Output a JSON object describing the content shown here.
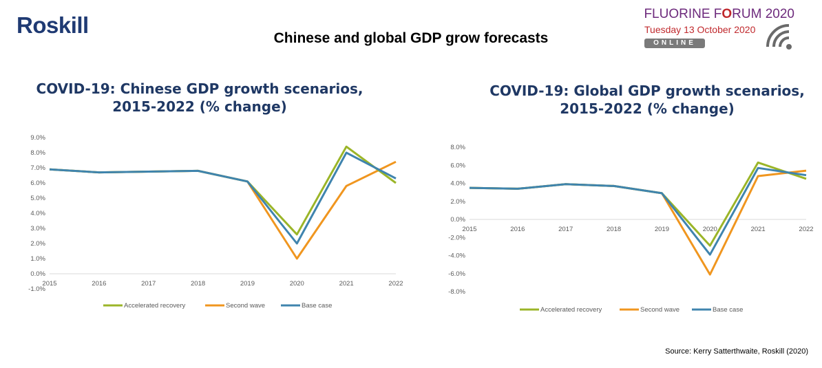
{
  "header": {
    "logo": "Roskill",
    "title": "Chinese and global GDP grow forecasts",
    "event_name_a": "FLUORINE F",
    "event_name_b": "O",
    "event_name_c": "RUM 2020",
    "event_date": "Tuesday 13 October 2020",
    "event_badge": "ONLINE",
    "event_icon": "wifi-signal-icon"
  },
  "source": "Source: Kerry Satterthwaite, Roskill (2020)",
  "colors": {
    "accelerated": "#9bb528",
    "second": "#f0961f",
    "base": "#3f84ae",
    "grid": "#d9d9d9"
  },
  "chart_data": [
    {
      "type": "line",
      "title_line1": "COVID-19: Chinese GDP growth scenarios,",
      "title_line2": "2015-2022 (% change)",
      "categories": [
        "2015",
        "2016",
        "2017",
        "2018",
        "2019",
        "2020",
        "2021",
        "2022"
      ],
      "yticks": [
        "-1.0%",
        "0.0%",
        "1.0%",
        "2.0%",
        "3.0%",
        "4.0%",
        "5.0%",
        "6.0%",
        "7.0%",
        "8.0%",
        "9.0%"
      ],
      "ylim": [
        -1,
        9
      ],
      "grid": "none",
      "legend_position": "bottom",
      "series": [
        {
          "name": "Accelerated recovery",
          "key": "accelerated",
          "values": [
            6.9,
            6.7,
            6.75,
            6.8,
            6.1,
            2.6,
            8.4,
            6.0
          ]
        },
        {
          "name": "Second wave",
          "key": "second",
          "values": [
            6.9,
            6.7,
            6.75,
            6.8,
            6.1,
            1.0,
            5.8,
            7.4
          ]
        },
        {
          "name": "Base case",
          "key": "base",
          "values": [
            6.9,
            6.7,
            6.75,
            6.8,
            6.1,
            2.0,
            8.0,
            6.3
          ]
        }
      ]
    },
    {
      "type": "line",
      "title_line1": "COVID-19: Global GDP growth scenarios,",
      "title_line2": "2015-2022 (% change)",
      "categories": [
        "2015",
        "2016",
        "2017",
        "2018",
        "2019",
        "2020",
        "2021",
        "2022"
      ],
      "yticks": [
        "-8.0%",
        "-6.0%",
        "-4.0%",
        "-2.0%",
        "0.0%",
        "2.0%",
        "4.0%",
        "6.0%",
        "8.0%"
      ],
      "ylim": [
        -8,
        8
      ],
      "grid": "none",
      "legend_position": "bottom",
      "series": [
        {
          "name": "Accelerated recovery",
          "key": "accelerated",
          "values": [
            3.5,
            3.4,
            3.9,
            3.7,
            2.9,
            -2.9,
            6.3,
            4.5
          ]
        },
        {
          "name": "Second wave",
          "key": "second",
          "values": [
            3.5,
            3.4,
            3.9,
            3.7,
            2.9,
            -6.1,
            4.8,
            5.4
          ]
        },
        {
          "name": "Base case",
          "key": "base",
          "values": [
            3.5,
            3.4,
            3.9,
            3.7,
            2.9,
            -3.9,
            5.7,
            4.9
          ]
        }
      ]
    }
  ]
}
